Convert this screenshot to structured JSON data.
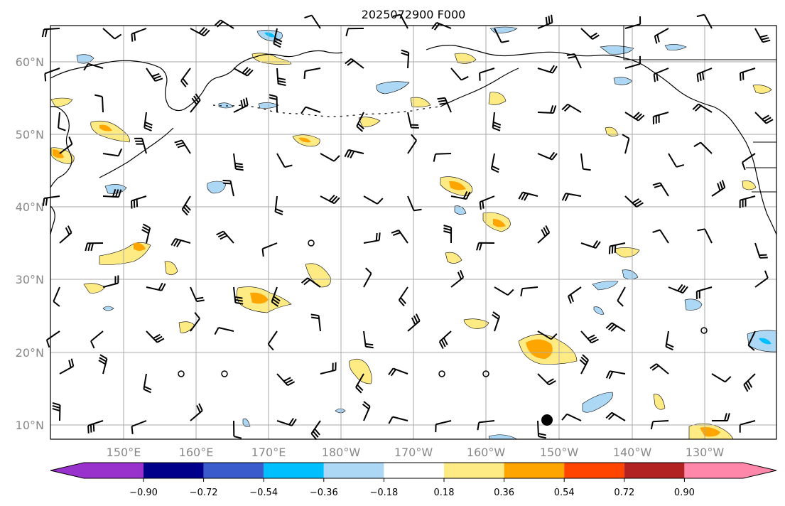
{
  "title": "2025072900 F000",
  "map": {
    "lat_labels": [
      "60°N",
      "50°N",
      "40°N",
      "30°N",
      "20°N",
      "10°N"
    ],
    "lon_labels": [
      "150°E",
      "160°E",
      "170°E",
      "180°W",
      "170°W",
      "160°W",
      "150°W",
      "140°W",
      "130°W"
    ]
  },
  "colorbar": {
    "ticks": [
      "−0.90",
      "−0.72",
      "−0.54",
      "−0.36",
      "−0.18",
      "0.18",
      "0.36",
      "0.54",
      "0.72",
      "0.90"
    ],
    "colors": [
      "#9932cc",
      "#00008b",
      "#3a5bcc",
      "#00bfff",
      "#add8f5",
      "#ffffff",
      "#ffeb84",
      "#ffa500",
      "#ff4500",
      "#b22222",
      "#ff88aa"
    ]
  },
  "colors": {
    "light_blue": "#add8f5",
    "blue": "#00bfff",
    "yellow": "#ffeb84",
    "orange": "#ffa500",
    "grid": "#aaaaaa"
  }
}
